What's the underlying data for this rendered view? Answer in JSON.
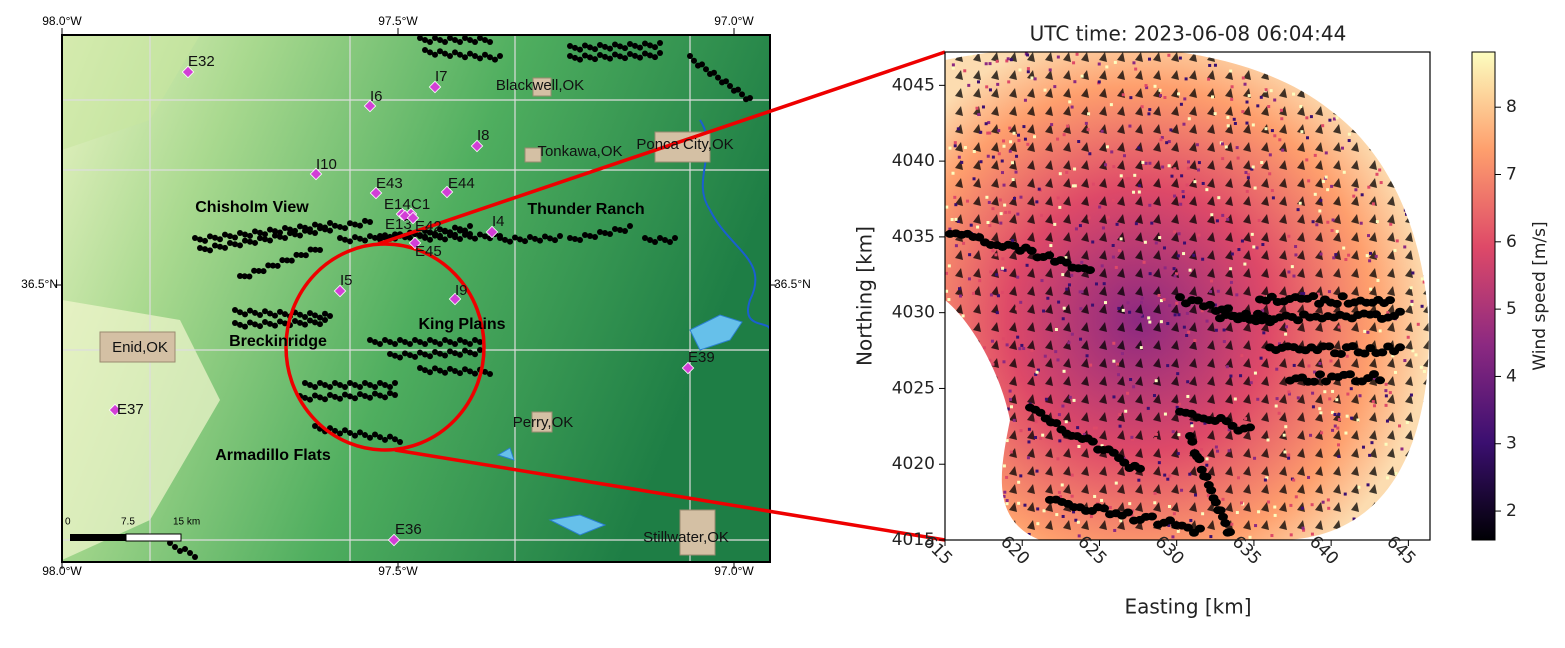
{
  "map": {
    "lon_ticks": [
      {
        "value": -98.0,
        "label": "98.0°W"
      },
      {
        "value": -97.5,
        "label": "97.5°W"
      },
      {
        "value": -97.0,
        "label": "97.0°W"
      }
    ],
    "lat_ticks": [
      {
        "value": 36.5,
        "label": "36.5°N"
      }
    ],
    "sites": [
      "E32",
      "I7",
      "I6",
      "I8",
      "I10",
      "E43",
      "E44",
      "E14",
      "C1",
      "E13",
      "E42",
      "E45",
      "I4",
      "I5",
      "I9",
      "E39",
      "E37",
      "E36"
    ],
    "towns": [
      "Blackwell,OK",
      "Tonkawa,OK",
      "Ponca City,OK",
      "Enid,OK",
      "Perry,OK",
      "Stillwater,OK"
    ],
    "wind_farms": [
      "Chisholm View",
      "Thunder Ranch",
      "King Plains",
      "Breckinridge",
      "Armadillo Flats"
    ],
    "scale_bar": [
      "0",
      "7.5",
      "15 km"
    ]
  },
  "chart_data": {
    "type": "heatmap",
    "title": "UTC time: 2023-06-08 06:04:44",
    "x_label": "Easting [km]",
    "y_label": "Northing [km]",
    "xlim": [
      615,
      646.4
    ],
    "xticks": [
      615,
      620,
      625,
      630,
      635,
      640,
      645
    ],
    "ylim": [
      4015,
      4047.2
    ],
    "yticks": [
      4015,
      4020,
      4025,
      4030,
      4035,
      4040,
      4045
    ],
    "colorbar": {
      "label": "Wind speed [m/s]",
      "lim": [
        1.57,
        8.82
      ],
      "ticks": [
        2,
        3,
        4,
        5,
        6,
        7,
        8
      ],
      "colormap": [
        "#000004",
        "#3b0f70",
        "#8c2981",
        "#de4968",
        "#fe9f6d",
        "#fcfdbf"
      ]
    }
  }
}
